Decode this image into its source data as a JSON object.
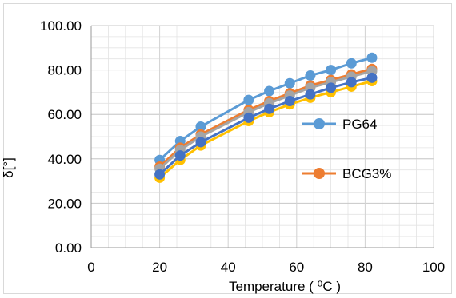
{
  "chart_data": {
    "type": "line",
    "title": "",
    "xlabel": "Temperature ( ⁰C )",
    "ylabel": "δ[°]",
    "xlim": [
      0,
      100
    ],
    "ylim": [
      0,
      100
    ],
    "xticks": [
      "0",
      "20",
      "40",
      "60",
      "80",
      "100"
    ],
    "yticks": [
      "0.00",
      "20.00",
      "40.00",
      "60.00",
      "80.00",
      "100.00"
    ],
    "x": [
      20,
      26,
      32,
      46,
      52,
      58,
      64,
      70,
      76,
      82
    ],
    "grid": true,
    "legend_position": "right",
    "series": [
      {
        "name": "PG64",
        "color": "#5b9bd5",
        "values": [
          39.5,
          48.0,
          54.5,
          66.5,
          70.5,
          74.0,
          77.5,
          80.0,
          83.0,
          85.5
        ],
        "legend": true
      },
      {
        "name": "BCG3%",
        "color": "#ed7d31",
        "values": [
          36.5,
          45.0,
          51.0,
          62.0,
          66.0,
          69.5,
          73.0,
          75.5,
          78.0,
          80.5
        ],
        "legend": true
      },
      {
        "name": "",
        "color": "#a5a5a5",
        "values": [
          35.5,
          44.0,
          50.0,
          61.0,
          65.0,
          68.5,
          72.0,
          74.5,
          77.0,
          79.5
        ],
        "legend": false
      },
      {
        "name": "",
        "color": "#ffc000",
        "values": [
          31.5,
          39.5,
          46.0,
          57.0,
          61.0,
          64.5,
          67.5,
          70.0,
          72.5,
          75.0
        ],
        "legend": false
      },
      {
        "name": "",
        "color": "#4472c4",
        "values": [
          33.0,
          41.5,
          47.5,
          58.5,
          62.5,
          66.0,
          69.0,
          72.0,
          74.5,
          76.5
        ],
        "legend": false
      }
    ]
  }
}
